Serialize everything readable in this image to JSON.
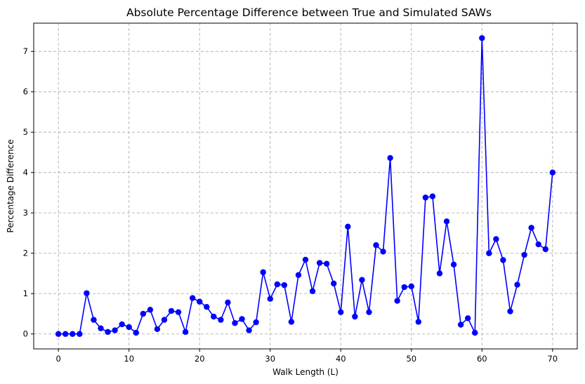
{
  "chart_data": {
    "type": "line",
    "title": "Absolute Percentage Difference between True and Simulated SAWs",
    "xlabel": "Walk Length (L)",
    "ylabel": "Percentage Difference",
    "xlim": [
      -3.5,
      73.5
    ],
    "ylim": [
      -0.37,
      7.7
    ],
    "xticks": [
      0,
      10,
      20,
      30,
      40,
      50,
      60,
      70
    ],
    "yticks": [
      0,
      1,
      2,
      3,
      4,
      5,
      6,
      7
    ],
    "grid": true,
    "series": [
      {
        "color": "#0000ff",
        "marker": "circle",
        "x": [
          0,
          1,
          2,
          3,
          4,
          5,
          6,
          7,
          8,
          9,
          10,
          11,
          12,
          13,
          14,
          15,
          16,
          17,
          18,
          19,
          20,
          21,
          22,
          23,
          24,
          25,
          26,
          27,
          28,
          29,
          30,
          31,
          32,
          33,
          34,
          35,
          36,
          37,
          38,
          39,
          40,
          41,
          42,
          43,
          44,
          45,
          46,
          47,
          48,
          49,
          50,
          51,
          52,
          53,
          54,
          55,
          56,
          57,
          58,
          59,
          60,
          61,
          62,
          63,
          64,
          65,
          66,
          67,
          68,
          69,
          70
        ],
        "y": [
          0,
          0,
          0,
          0,
          1.01,
          0.35,
          0.14,
          0.05,
          0.09,
          0.24,
          0.17,
          0.03,
          0.5,
          0.6,
          0.12,
          0.35,
          0.57,
          0.54,
          0.05,
          0.89,
          0.8,
          0.67,
          0.43,
          0.35,
          0.78,
          0.27,
          0.37,
          0.09,
          0.29,
          1.53,
          0.87,
          1.23,
          1.21,
          0.3,
          1.46,
          1.84,
          1.06,
          1.76,
          1.74,
          1.25,
          0.54,
          2.66,
          0.43,
          1.34,
          0.54,
          2.2,
          2.04,
          4.36,
          0.82,
          1.16,
          1.18,
          0.3,
          3.38,
          3.41,
          1.5,
          2.79,
          1.72,
          0.23,
          0.39,
          0.03,
          7.33,
          2.0,
          2.35,
          1.83,
          0.56,
          1.22,
          1.96,
          2.63,
          2.22,
          2.1,
          4.0
        ]
      }
    ]
  }
}
